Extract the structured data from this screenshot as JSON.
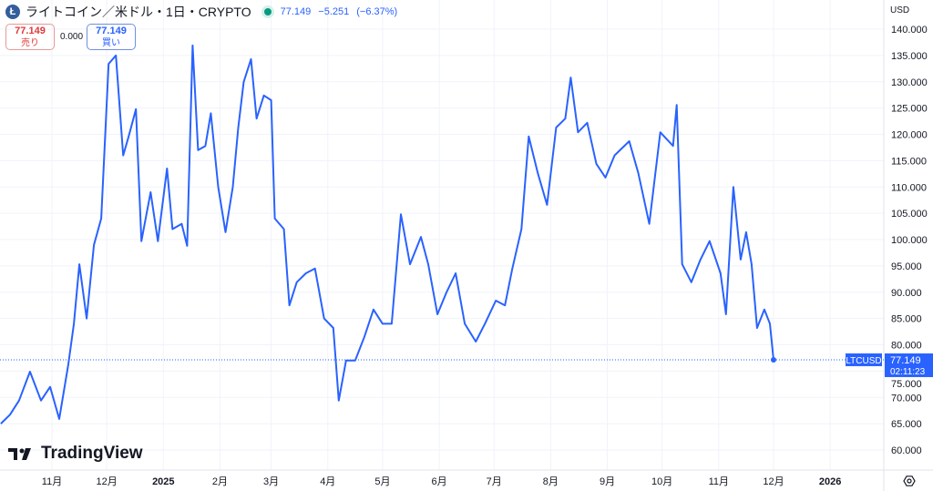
{
  "header": {
    "logo_letter": "Ł",
    "title": "ライトコイン／米ドル・1日・CRYPTO",
    "last": "77.149",
    "change": "−5.251",
    "change_pct": "(−6.37%)",
    "status_color": "#089981"
  },
  "trade": {
    "sell_price": "77.149",
    "sell_label": "売り",
    "spread": "0.000",
    "buy_price": "77.149",
    "buy_label": "買い"
  },
  "currency": "USD",
  "watermark": "TradingView",
  "settings_icon": "gear-icon",
  "price_label": {
    "symbol": "LTCUSD",
    "price": "77.149",
    "countdown": "02:11:23"
  },
  "chart_data": {
    "type": "line",
    "title": "",
    "xlabel": "",
    "ylabel": "",
    "ylim": [
      57.5,
      142.5
    ],
    "grid": true,
    "line_color": "#2962ff",
    "legend": "none",
    "yticks": [
      "140.000",
      "135.000",
      "130.000",
      "125.000",
      "120.000",
      "115.000",
      "110.000",
      "105.000",
      "100.000",
      "95.000",
      "90.000",
      "85.000",
      "80.000",
      "75.000",
      "70.000",
      "65.000",
      "60.000"
    ],
    "xticks": [
      {
        "label": "11月",
        "date": "2024-11-01"
      },
      {
        "label": "12月",
        "date": "2024-12-01"
      },
      {
        "label": "2025",
        "date": "2025-01-01"
      },
      {
        "label": "2月",
        "date": "2025-02-01"
      },
      {
        "label": "3月",
        "date": "2025-03-01"
      },
      {
        "label": "4月",
        "date": "2025-04-01"
      },
      {
        "label": "5月",
        "date": "2025-05-01"
      },
      {
        "label": "6月",
        "date": "2025-06-01"
      },
      {
        "label": "7月",
        "date": "2025-07-01"
      },
      {
        "label": "8月",
        "date": "2025-08-01"
      },
      {
        "label": "9月",
        "date": "2025-09-01"
      },
      {
        "label": "10月",
        "date": "2025-10-01"
      },
      {
        "label": "11月",
        "date": "2025-11-01"
      },
      {
        "label": "12月",
        "date": "2025-12-01"
      },
      {
        "label": "2026",
        "date": "2026-01-01"
      }
    ],
    "x": [
      "2024-10-04",
      "2024-10-09",
      "2024-10-14",
      "2024-10-20",
      "2024-10-26",
      "2024-10-31",
      "2024-11-05",
      "2024-11-10",
      "2024-11-13",
      "2024-11-16",
      "2024-11-20",
      "2024-11-24",
      "2024-11-28",
      "2024-12-02",
      "2024-12-06",
      "2024-12-10",
      "2024-12-13",
      "2024-12-17",
      "2024-12-20",
      "2024-12-25",
      "2024-12-29",
      "2025-01-03",
      "2025-01-06",
      "2025-01-11",
      "2025-01-14",
      "2025-01-17",
      "2025-01-20",
      "2025-01-24",
      "2025-01-27",
      "2025-01-31",
      "2025-02-04",
      "2025-02-08",
      "2025-02-11",
      "2025-02-14",
      "2025-02-18",
      "2025-02-21",
      "2025-02-25",
      "2025-03-01",
      "2025-03-03",
      "2025-03-08",
      "2025-03-11",
      "2025-03-15",
      "2025-03-20",
      "2025-03-25",
      "2025-03-30",
      "2025-04-04",
      "2025-04-07",
      "2025-04-11",
      "2025-04-16",
      "2025-04-21",
      "2025-04-26",
      "2025-05-01",
      "2025-05-06",
      "2025-05-11",
      "2025-05-16",
      "2025-05-22",
      "2025-05-26",
      "2025-05-31",
      "2025-06-05",
      "2025-06-10",
      "2025-06-15",
      "2025-06-21",
      "2025-06-26",
      "2025-07-02",
      "2025-07-07",
      "2025-07-11",
      "2025-07-16",
      "2025-07-20",
      "2025-07-25",
      "2025-07-30",
      "2025-08-04",
      "2025-08-09",
      "2025-08-12",
      "2025-08-16",
      "2025-08-21",
      "2025-08-26",
      "2025-08-31",
      "2025-09-05",
      "2025-09-13",
      "2025-09-18",
      "2025-09-24",
      "2025-09-30",
      "2025-10-07",
      "2025-10-09",
      "2025-10-12",
      "2025-10-17",
      "2025-10-22",
      "2025-10-27",
      "2025-11-02",
      "2025-11-05",
      "2025-11-09",
      "2025-11-13",
      "2025-11-16",
      "2025-11-19",
      "2025-11-22",
      "2025-11-26",
      "2025-11-29",
      "2025-12-01"
    ],
    "values": [
      65,
      66.7,
      69.4,
      74.9,
      69.4,
      72,
      65.9,
      76.3,
      84,
      95.3,
      85,
      99,
      104,
      133.4,
      135,
      116,
      119.6,
      124.8,
      99.7,
      109,
      99.7,
      113.5,
      102,
      103,
      98.8,
      136.9,
      117,
      117.8,
      124,
      110,
      101.4,
      110,
      121.3,
      130,
      134.3,
      123,
      127.4,
      126.5,
      104,
      102,
      87.5,
      91.9,
      93.6,
      94.5,
      85,
      83.2,
      69.4,
      77,
      77,
      81.5,
      86.7,
      84,
      84,
      104.8,
      95.3,
      100.5,
      95.3,
      85.8,
      90,
      93.6,
      84,
      80.6,
      84,
      88.4,
      87.5,
      94.5,
      102,
      119.6,
      112.6,
      106.6,
      121.3,
      123,
      130.8,
      120.4,
      122.2,
      114.4,
      111.8,
      116,
      118.7,
      112.6,
      103,
      120.4,
      117.8,
      125.6,
      95.3,
      91.9,
      96.2,
      99.7,
      93.6,
      85.8,
      110,
      96.2,
      101.4,
      95.3,
      83.2,
      86.7,
      84,
      77.149
    ]
  }
}
